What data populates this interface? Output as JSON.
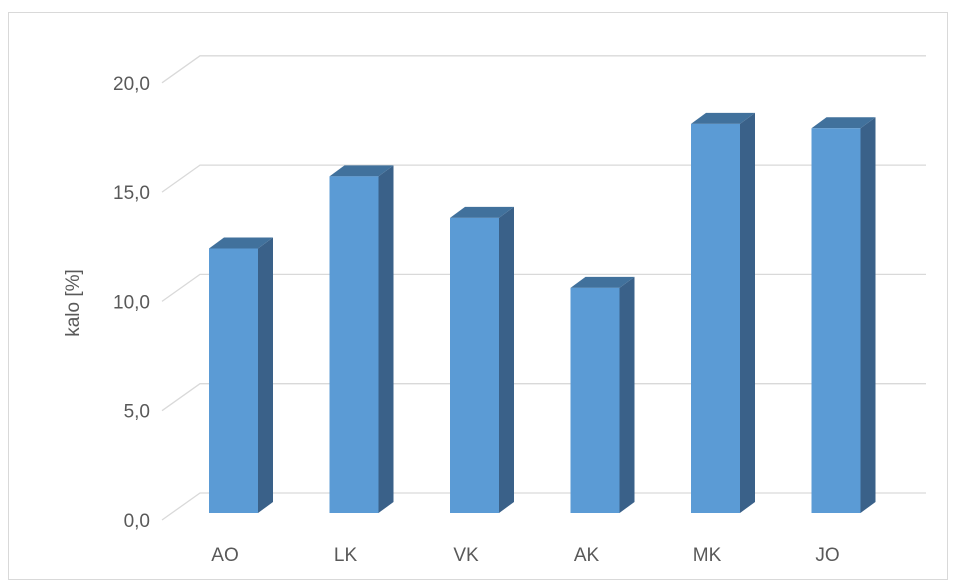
{
  "chart_data": {
    "type": "bar",
    "title": "",
    "xlabel": "",
    "ylabel": "kalo [%]",
    "categories": [
      "AO",
      "LK",
      "VK",
      "AK",
      "MK",
      "JO"
    ],
    "values": [
      12.1,
      15.4,
      13.5,
      10.3,
      17.8,
      17.6
    ],
    "ylim": [
      0,
      20
    ],
    "yticks": [
      "0,0",
      "5,0",
      "10,0",
      "15,0",
      "20,0"
    ],
    "ytick_values": [
      0,
      5,
      10,
      15,
      20
    ],
    "grid": true,
    "legend": "none",
    "style": "3d-column",
    "colors": {
      "front": "#5b9bd5",
      "side": "#3a6189",
      "top": "#41719c",
      "grid": "#d9d9d9",
      "text": "#595959"
    }
  }
}
